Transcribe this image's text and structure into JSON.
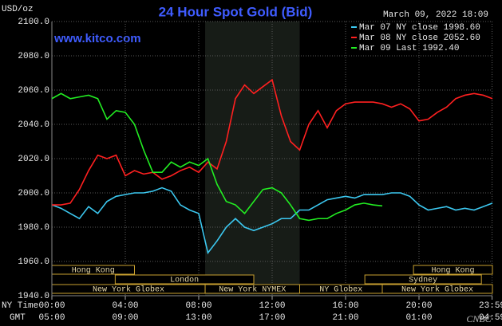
{
  "chart_data": {
    "type": "line",
    "title": "24 Hour Spot Gold (Bid)",
    "subtitle": "www.kitco.com",
    "timestamp": "March 09, 2022 18:09",
    "y_label": "USD/oz",
    "x_label": "NY Time",
    "x2_label": "GMT",
    "watermark": "CNBC",
    "x": [
      0,
      0.5,
      1,
      1.5,
      2,
      2.5,
      3,
      3.5,
      4,
      4.5,
      5,
      5.5,
      6,
      6.5,
      7,
      7.5,
      8,
      8.5,
      9,
      9.5,
      10,
      10.5,
      11,
      11.5,
      12,
      12.5,
      13,
      13.5,
      14,
      14.5,
      15,
      15.5,
      16,
      16.5,
      17,
      17.5,
      18,
      18.5,
      19,
      19.5,
      20,
      20.5,
      21,
      21.5,
      22,
      22.5,
      23,
      23.5,
      24
    ],
    "series": [
      {
        "name": "Mar 07 NY close 1998.60",
        "color": "#3cc8f0",
        "values": [
          1993,
          1991,
          1988,
          1985,
          1992,
          1988,
          1995,
          1998,
          1999,
          2000,
          2000,
          2001,
          2003,
          2001,
          1993,
          1990,
          1988,
          1965,
          1972,
          1980,
          1985,
          1980,
          1978,
          1980,
          1982,
          1985,
          1985,
          1990,
          1990,
          1993,
          1996,
          1997,
          1998,
          1997,
          1999,
          1999,
          1999,
          2000,
          2000,
          1998,
          1993,
          1990,
          1991,
          1992,
          1990,
          1991,
          1990,
          1992,
          1994
        ]
      },
      {
        "name": "Mar 08 NY close 2052.60",
        "color": "#ff2020",
        "values": [
          1993,
          1993,
          1994,
          2002,
          2013,
          2022,
          2020,
          2022,
          2010,
          2013,
          2011,
          2012,
          2008,
          2010,
          2013,
          2015,
          2012,
          2018,
          2014,
          2030,
          2055,
          2063,
          2058,
          2062,
          2066,
          2045,
          2030,
          2025,
          2040,
          2048,
          2038,
          2048,
          2052,
          2053,
          2053,
          2053,
          2052,
          2050,
          2052,
          2049,
          2042,
          2043,
          2047,
          2050,
          2055,
          2057,
          2058,
          2057,
          2055
        ]
      },
      {
        "name": "Mar 09 Last 1992.40",
        "color": "#22ee22",
        "values": [
          2055,
          2058,
          2055,
          2056,
          2057,
          2055,
          2043,
          2048,
          2047,
          2040,
          2025,
          2012,
          2012,
          2018,
          2015,
          2018,
          2016,
          2020,
          2005,
          1995,
          1993,
          1988,
          1995,
          2002,
          2003,
          2000,
          1993,
          1985,
          1984,
          1985,
          1985,
          1988,
          1990,
          1993,
          1994,
          1993,
          1992.4,
          null,
          null,
          null,
          null,
          null,
          null,
          null,
          null,
          null,
          null,
          null,
          null
        ]
      }
    ],
    "xlim": [
      0,
      24
    ],
    "xticks": [
      {
        "value": 0,
        "label": "00:00"
      },
      {
        "value": 4,
        "label": "04:00"
      },
      {
        "value": 8,
        "label": "08:00"
      },
      {
        "value": 12,
        "label": "12:00"
      },
      {
        "value": 16,
        "label": "16:00"
      },
      {
        "value": 20,
        "label": "20:00"
      },
      {
        "value": 23.98,
        "label": "23:59"
      }
    ],
    "x2ticks": [
      {
        "value": 0,
        "label": "05:00"
      },
      {
        "value": 4,
        "label": "09:00"
      },
      {
        "value": 8,
        "label": "13:00"
      },
      {
        "value": 12,
        "label": "17:00"
      },
      {
        "value": 16,
        "label": "21:00"
      },
      {
        "value": 20,
        "label": "01:00"
      },
      {
        "value": 23.98,
        "label": "04:59"
      }
    ],
    "ylim": [
      1940,
      2100
    ],
    "yticks": [
      {
        "value": 1940,
        "label": "1940.0"
      },
      {
        "value": 1960,
        "label": "1960.0"
      },
      {
        "value": 1980,
        "label": "1980.0"
      },
      {
        "value": 2000,
        "label": "2000.0"
      },
      {
        "value": 2020,
        "label": "2020.0"
      },
      {
        "value": 2040,
        "label": "2040.0"
      },
      {
        "value": 2060,
        "label": "2060.0"
      },
      {
        "value": 2080,
        "label": "2080.0"
      },
      {
        "value": 2100,
        "label": "2100.0"
      }
    ],
    "grid": true,
    "sessions": [
      {
        "label": "Hong Kong",
        "start": 0,
        "end": 4.5
      },
      {
        "label": "London",
        "start": 3.45,
        "end": 11
      },
      {
        "label": "New York Globex",
        "start": 0,
        "end": 8.35
      },
      {
        "label": "New York NYMEX",
        "start": 8.35,
        "end": 13.5
      },
      {
        "label": "NY Globex",
        "start": 13.5,
        "end": 18
      },
      {
        "label": "Hong Kong",
        "start": 19.7,
        "end": 24
      },
      {
        "label": "Sydney",
        "start": 17.05,
        "end": 23.4
      },
      {
        "label": "New York Globex",
        "start": 18,
        "end": 24
      }
    ]
  }
}
